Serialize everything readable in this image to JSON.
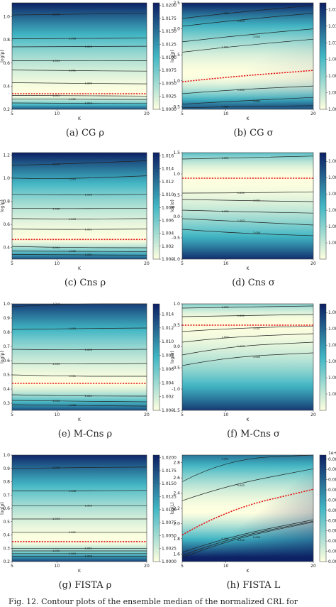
{
  "colors": {
    "low": "#ffffe0",
    "mid": "#41b6c4",
    "high": "#0c1f63",
    "contour": "#222222",
    "optimal": "#e41a1c"
  },
  "footer_text": "Fig. 12. Contour plots of the ensemble median of the normalized CRL for",
  "chart_data": [
    {
      "id": "a",
      "type": "heatmap",
      "caption": "(a) CG ρ",
      "xlabel": "K",
      "ylabel": "log(ρ)",
      "x_ticks": [
        5,
        10,
        20
      ],
      "xlim": [
        5,
        20
      ],
      "y_ticks": [
        0.2,
        0.4,
        0.6,
        0.8,
        1.0
      ],
      "ylim": [
        0.2,
        1.12
      ],
      "colorbar": {
        "ticks": [
          "1.0000",
          "1.0025",
          "1.0050",
          "1.0075",
          "1.0100",
          "1.0125",
          "1.0150",
          "1.0175",
          "1.0200"
        ],
        "range": [
          1.0,
          1.0205
        ]
      },
      "field": {
        "kind": "valley",
        "center": 0.33,
        "up_span": 0.79,
        "down_span": 0.13,
        "up_power": 1.6,
        "down_power": 1.6,
        "tilt": 0.0,
        "bottom_alpha": 0.85
      },
      "contours": [
        {
          "level": "1.016",
          "y": [
            1.015,
            1.02,
            1.03
          ]
        },
        {
          "level": "1.008",
          "y": [
            0.81,
            0.812,
            0.815
          ]
        },
        {
          "level": "1.005",
          "y": [
            0.74,
            0.742,
            0.745
          ]
        },
        {
          "level": "1.003",
          "y": [
            0.62,
            0.618,
            0.62
          ]
        },
        {
          "level": "1.001",
          "y": [
            0.54,
            0.535,
            0.53
          ]
        },
        {
          "level": "1.000",
          "y": [
            0.43,
            0.425,
            0.42
          ]
        },
        {
          "level": "1.001",
          "y": [
            0.32,
            0.318,
            0.315
          ]
        },
        {
          "level": "1.002",
          "y": [
            0.29,
            0.287,
            0.285
          ]
        },
        {
          "level": "1.004",
          "y": [
            0.255,
            0.252,
            0.25
          ]
        }
      ],
      "optimal_y": [
        0.335,
        0.335,
        0.335
      ]
    },
    {
      "id": "b",
      "type": "heatmap",
      "caption": "(b) CG σ",
      "xlabel": "K",
      "ylabel": "log(σ)",
      "x_ticks": [
        5,
        10,
        20
      ],
      "xlim": [
        5,
        20
      ],
      "y_ticks": [
        0.5,
        1.0,
        1.5,
        2.0,
        2.5
      ],
      "ylim": [
        0.45,
        2.5
      ],
      "colorbar": {
        "ticks": [
          "1.0000",
          "1.0025",
          "1.0050",
          "1.0075",
          "1.0100",
          "1.0125",
          "1.0150"
        ],
        "range": [
          1.0,
          1.016
        ]
      },
      "field": {
        "kind": "valley",
        "center": 1.1,
        "up_span": 1.4,
        "down_span": 0.6,
        "up_power": 1.8,
        "down_power": 1.7,
        "tilt": 0.12,
        "bottom_alpha": 0.8
      },
      "contours": [
        {
          "level": "1.010",
          "y": [
            2.2,
            2.3,
            2.45
          ]
        },
        {
          "level": "1.005",
          "y": [
            2.05,
            2.15,
            2.3
          ]
        },
        {
          "level": "1.002",
          "y": [
            1.75,
            1.85,
            2.0
          ]
        },
        {
          "level": "1.001",
          "y": [
            1.55,
            1.65,
            1.8
          ]
        },
        {
          "level": "1.001",
          "y": [
            0.75,
            0.82,
            0.9
          ]
        },
        {
          "level": "1.002",
          "y": [
            0.55,
            0.6,
            0.68
          ]
        },
        {
          "level": "1.005",
          "y": [
            0.48,
            0.5,
            0.52
          ]
        }
      ],
      "optimal_y": [
        0.98,
        1.07,
        1.2
      ]
    },
    {
      "id": "c",
      "type": "heatmap",
      "caption": "(c) Cns ρ",
      "xlabel": "K",
      "ylabel": "log(ρ)",
      "x_ticks": [
        5,
        10,
        20
      ],
      "xlim": [
        5,
        20
      ],
      "y_ticks": [
        0.4,
        0.6,
        0.8,
        1.0,
        1.2
      ],
      "ylim": [
        0.3,
        1.22
      ],
      "colorbar": {
        "ticks": [
          "1.000",
          "1.002",
          "1.004",
          "1.006",
          "1.008",
          "1.010",
          "1.012",
          "1.014",
          "1.016"
        ],
        "range": [
          1.0,
          1.0165
        ]
      },
      "field": {
        "kind": "valley",
        "center": 0.47,
        "up_span": 0.75,
        "down_span": 0.17,
        "up_power": 1.6,
        "down_power": 1.5,
        "tilt": 0.0,
        "bottom_alpha": 0.85
      },
      "contours": [
        {
          "level": "1.014",
          "y": [
            1.11,
            1.12,
            1.15
          ]
        },
        {
          "level": "1.010",
          "y": [
            1.0,
            0.99,
            1.02
          ]
        },
        {
          "level": "1.008",
          "y": [
            0.86,
            0.855,
            0.86
          ]
        },
        {
          "level": "1.006",
          "y": [
            0.74,
            0.735,
            0.74
          ]
        },
        {
          "level": "1.003",
          "y": [
            0.65,
            0.645,
            0.65
          ]
        },
        {
          "level": "1.001",
          "y": [
            0.56,
            0.555,
            0.56
          ]
        },
        {
          "level": "1.001",
          "y": [
            0.41,
            0.4,
            0.398
          ]
        },
        {
          "level": "1.002",
          "y": [
            0.37,
            0.368,
            0.365
          ]
        },
        {
          "level": "1.004",
          "y": [
            0.34,
            0.337,
            0.335
          ]
        }
      ],
      "optimal_y": [
        0.47,
        0.47,
        0.47
      ]
    },
    {
      "id": "d",
      "type": "heatmap",
      "caption": "(d) Cns σ",
      "xlabel": "K",
      "ylabel": "log(σ)",
      "x_ticks": [
        5,
        10,
        20
      ],
      "xlim": [
        5,
        20
      ],
      "y_ticks": [
        -1.0,
        -0.5,
        0.0,
        0.5,
        1.0,
        1.5
      ],
      "ylim": [
        -1.0,
        1.5
      ],
      "colorbar": {
        "ticks": [
          "1.0015",
          "1.0030",
          "1.0045",
          "1.0060",
          "1.0075",
          "1.0090"
        ],
        "range": [
          1.0,
          1.0098
        ]
      },
      "field": {
        "kind": "valley",
        "center": 0.9,
        "up_span": 0.9,
        "down_span": 1.9,
        "up_power": 2.0,
        "down_power": 1.9,
        "tilt": 0.0,
        "bottom_alpha": 0.95
      },
      "contours": [
        {
          "level": "1.001",
          "y": [
            1.35,
            1.37,
            1.42
          ]
        },
        {
          "level": "1.001",
          "y": [
            0.55,
            0.55,
            0.58
          ]
        },
        {
          "level": "1.001",
          "y": [
            0.4,
            0.38,
            0.35
          ]
        },
        {
          "level": "1.002",
          "y": [
            0.15,
            0.12,
            0.08
          ]
        },
        {
          "level": "1.003",
          "y": [
            -0.05,
            -0.1,
            -0.2
          ]
        },
        {
          "level": "1.005",
          "y": [
            -0.3,
            -0.38,
            -0.45
          ]
        }
      ],
      "optimal_y": [
        0.9,
        0.9,
        0.9
      ]
    },
    {
      "id": "e",
      "type": "heatmap",
      "caption": "(e) M-Cns ρ",
      "xlabel": "K",
      "ylabel": "log(ρ)",
      "x_ticks": [
        5,
        10,
        20
      ],
      "xlim": [
        5,
        20
      ],
      "y_ticks": [
        0.3,
        0.4,
        0.5,
        0.6,
        0.7,
        0.8,
        0.9,
        1.0
      ],
      "ylim": [
        0.25,
        1.0
      ],
      "colorbar": {
        "ticks": [
          "1.000",
          "1.002",
          "1.004",
          "1.006",
          "1.008",
          "1.010",
          "1.012",
          "1.014"
        ],
        "range": [
          1.0,
          1.0155
        ]
      },
      "field": {
        "kind": "valley",
        "center": 0.44,
        "up_span": 0.6,
        "down_span": 0.19,
        "up_power": 1.5,
        "down_power": 1.5,
        "tilt": 0.0,
        "bottom_alpha": 0.85
      },
      "contours": [
        {
          "level": "1.014",
          "y": [
            0.98,
            1.0,
            1.0
          ]
        },
        {
          "level": "1.010",
          "y": [
            0.82,
            0.825,
            0.83
          ]
        },
        {
          "level": "1.006",
          "y": [
            0.68,
            0.675,
            0.68
          ]
        },
        {
          "level": "1.003",
          "y": [
            0.58,
            0.575,
            0.58
          ]
        },
        {
          "level": "1.001",
          "y": [
            0.5,
            0.49,
            0.49
          ]
        },
        {
          "level": "1.001",
          "y": [
            0.36,
            0.352,
            0.35
          ]
        },
        {
          "level": "1.003",
          "y": [
            0.32,
            0.315,
            0.31
          ]
        },
        {
          "level": "1.006",
          "y": [
            0.29,
            0.285,
            0.28
          ]
        }
      ],
      "optimal_y": [
        0.44,
        0.44,
        0.44
      ]
    },
    {
      "id": "f",
      "type": "heatmap",
      "caption": "(f) M-Cns σ",
      "xlabel": "K",
      "ylabel": "log(σ)",
      "x_ticks": [
        5,
        10,
        20
      ],
      "xlim": [
        5,
        20
      ],
      "y_ticks": [
        -1.5,
        -1.0,
        -0.5,
        0.0,
        0.5,
        1.0
      ],
      "ylim": [
        -1.5,
        1.0
      ],
      "colorbar": {
        "ticks": [
          "1.0015",
          "1.0030",
          "1.0045",
          "1.0060",
          "1.0075",
          "1.0090"
        ],
        "range": [
          1.0,
          1.0098
        ]
      },
      "field": {
        "kind": "valley",
        "center": 0.55,
        "up_span": 0.8,
        "down_span": 2.1,
        "up_power": 2.0,
        "down_power": 1.8,
        "tilt": 0.0,
        "bottom_alpha": 0.95
      },
      "contours": [
        {
          "level": "1.002",
          "y": [
            0.9,
            0.92,
            0.95
          ]
        },
        {
          "level": "1.001",
          "y": [
            0.7,
            0.72,
            0.75
          ]
        },
        {
          "level": "1.001",
          "y": [
            0.35,
            0.42,
            0.48
          ]
        },
        {
          "level": "1.002",
          "y": [
            0.1,
            0.22,
            0.3
          ]
        },
        {
          "level": "1.003",
          "y": [
            -0.2,
            0.0,
            0.1
          ]
        },
        {
          "level": "1.005",
          "y": [
            -0.45,
            -0.25,
            -0.15
          ]
        }
      ],
      "optimal_y": [
        0.5,
        0.5,
        0.5
      ]
    },
    {
      "id": "g",
      "type": "heatmap",
      "caption": "(g) FISTA ρ",
      "xlabel": "K",
      "ylabel": "log(ρ)",
      "x_ticks": [
        5,
        10,
        20
      ],
      "xlim": [
        5,
        20
      ],
      "y_ticks": [
        0.2,
        0.3,
        0.4,
        0.5,
        0.6,
        0.7,
        0.8,
        0.9,
        1.0
      ],
      "ylim": [
        0.2,
        1.0
      ],
      "colorbar": {
        "ticks": [
          "1.0000",
          "1.0025",
          "1.0050",
          "1.0075",
          "1.0100",
          "1.0125",
          "1.0150",
          "1.0175",
          "1.0200"
        ],
        "range": [
          1.0,
          1.0205
        ]
      },
      "field": {
        "kind": "valley",
        "center": 0.35,
        "up_span": 0.66,
        "down_span": 0.15,
        "up_power": 1.6,
        "down_power": 1.5,
        "tilt": 0.0,
        "bottom_alpha": 0.9
      },
      "contours": [
        {
          "level": "1.016",
          "y": [
            0.9,
            0.905,
            0.91
          ]
        },
        {
          "level": "1.008",
          "y": [
            0.73,
            0.73,
            0.735
          ]
        },
        {
          "level": "1.005",
          "y": [
            0.62,
            0.62,
            0.62
          ]
        },
        {
          "level": "1.003",
          "y": [
            0.52,
            0.52,
            0.52
          ]
        },
        {
          "level": "1.001",
          "y": [
            0.42,
            0.42,
            0.42
          ]
        },
        {
          "level": "1.001",
          "y": [
            0.3,
            0.3,
            0.3
          ]
        },
        {
          "level": "1.002",
          "y": [
            0.28,
            0.28,
            0.28
          ]
        },
        {
          "level": "1.004",
          "y": [
            0.26,
            0.26,
            0.26
          ]
        },
        {
          "level": "1.008",
          "y": [
            0.24,
            0.24,
            0.24
          ]
        }
      ],
      "optimal_y": [
        0.35,
        0.35,
        0.35
      ]
    },
    {
      "id": "h",
      "type": "heatmap",
      "caption": "(h) FISTA L",
      "xlabel": "K",
      "ylabel": "log(L)",
      "x_ticks": [
        5,
        10,
        20
      ],
      "xlim": [
        5,
        20
      ],
      "y_ticks": [
        1.6,
        1.8,
        2.0,
        2.2,
        2.4,
        2.6,
        2.8
      ],
      "ylim": [
        1.5,
        2.9
      ],
      "colorbar": {
        "ticks": [
          "0.0000",
          "0.0005",
          "0.0010",
          "0.0015",
          "0.0020",
          "0.0025",
          "0.0030",
          "0.0035",
          "0.0040",
          "0.0045",
          "0.0050"
        ],
        "range": [
          0.0,
          0.0052
        ],
        "offset_label": "1e+0"
      },
      "field": {
        "kind": "valley",
        "center": 2.15,
        "up_span": 0.9,
        "down_span": 0.6,
        "up_power": 1.8,
        "down_power": 1.3,
        "tilt": 0.55,
        "bottom_alpha": 1.0
      },
      "contours": [
        {
          "level": "0.001",
          "y": [
            2.55,
            2.85,
            2.95
          ]
        },
        {
          "level": "0.002",
          "y": [
            2.3,
            2.5,
            2.72
          ]
        },
        {
          "level": "0.000",
          "y": [
            1.62,
            1.82,
            2.05
          ]
        },
        {
          "level": "0.001",
          "y": [
            1.58,
            1.8,
            2.03
          ]
        },
        {
          "level": "0.002",
          "y": [
            1.55,
            1.78,
            2.02
          ]
        }
      ],
      "optimal_y": [
        1.85,
        2.18,
        2.45
      ]
    }
  ]
}
